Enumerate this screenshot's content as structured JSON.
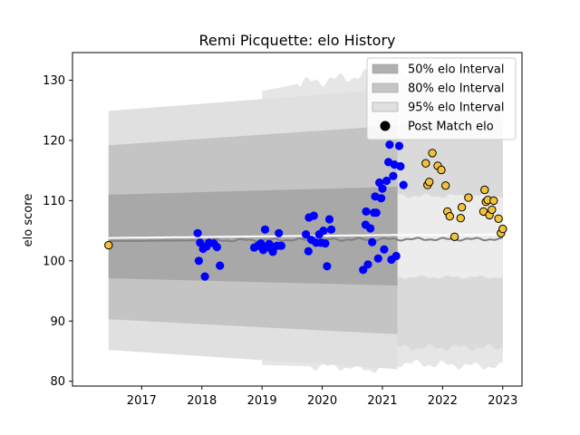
{
  "chart_data": {
    "type": "scatter",
    "title": "Remi Picquette: elo History",
    "xlabel": "",
    "ylabel": "elo score",
    "xlim": [
      2015.85,
      2023.32
    ],
    "ylim": [
      79.2,
      134.6
    ],
    "x_ticks": [
      2017,
      2018,
      2019,
      2020,
      2021,
      2022,
      2023
    ],
    "y_ticks": [
      80,
      90,
      100,
      110,
      120,
      130
    ],
    "legend_position": "top-right",
    "legend": [
      {
        "label": "50% elo Interval",
        "color": "#b0b0b0",
        "kind": "band"
      },
      {
        "label": "80% elo Interval",
        "color": "#c6c6c6",
        "kind": "band"
      },
      {
        "label": "95% elo Interval",
        "color": "#e0e0e0",
        "kind": "band"
      },
      {
        "label": "Post Match elo",
        "color": "#000000",
        "kind": "marker"
      }
    ],
    "colors": {
      "band50": "#a8a8a8",
      "band80": "#c4c4c4",
      "band95": "#e0e0e0",
      "band_outer": "#e6e6e6",
      "mean_line": "#ffffff",
      "median_line": "#808080",
      "past_points": "#0000ff",
      "future_points": "#f2c23a",
      "future_edge": "#000000"
    },
    "series": [
      {
        "values": [
          [
            2016.45,
            102.6
          ]
        ],
        "role": "first_point"
      },
      {
        "values": [
          [
            2017.93,
            104.6
          ],
          [
            2017.95,
            100.0
          ],
          [
            2017.97,
            103.0
          ],
          [
            2018.02,
            102.0
          ],
          [
            2018.05,
            97.4
          ],
          [
            2018.08,
            102.4
          ],
          [
            2018.12,
            103.0
          ],
          [
            2018.2,
            102.9
          ],
          [
            2018.25,
            102.3
          ],
          [
            2018.3,
            99.2
          ],
          [
            2018.87,
            102.2
          ],
          [
            2018.93,
            102.5
          ],
          [
            2018.98,
            102.9
          ],
          [
            2019.02,
            101.8
          ],
          [
            2019.05,
            105.2
          ],
          [
            2019.08,
            102.4
          ],
          [
            2019.12,
            102.8
          ],
          [
            2019.15,
            102.0
          ],
          [
            2019.18,
            101.5
          ],
          [
            2019.2,
            102.3
          ],
          [
            2019.25,
            102.5
          ],
          [
            2019.28,
            104.6
          ],
          [
            2019.32,
            102.5
          ],
          [
            2019.73,
            104.4
          ],
          [
            2019.77,
            101.6
          ],
          [
            2019.78,
            107.2
          ],
          [
            2019.82,
            103.5
          ],
          [
            2019.86,
            107.5
          ],
          [
            2019.9,
            103.0
          ],
          [
            2019.95,
            104.4
          ],
          [
            2019.98,
            103.0
          ],
          [
            2020.02,
            105.0
          ],
          [
            2020.05,
            102.9
          ],
          [
            2020.08,
            99.1
          ],
          [
            2020.12,
            106.9
          ],
          [
            2020.15,
            105.2
          ],
          [
            2020.68,
            98.5
          ],
          [
            2020.72,
            106.0
          ],
          [
            2020.73,
            108.2
          ],
          [
            2020.76,
            99.4
          ],
          [
            2020.8,
            105.4
          ],
          [
            2020.83,
            103.1
          ],
          [
            2020.86,
            108.0
          ],
          [
            2020.88,
            110.7
          ],
          [
            2020.9,
            108.0
          ],
          [
            2020.93,
            100.4
          ],
          [
            2020.95,
            113.0
          ],
          [
            2020.98,
            110.4
          ],
          [
            2021.0,
            112.0
          ],
          [
            2021.03,
            101.9
          ],
          [
            2021.07,
            113.3
          ],
          [
            2021.1,
            116.4
          ],
          [
            2021.12,
            119.3
          ],
          [
            2021.15,
            100.2
          ],
          [
            2021.18,
            114.1
          ],
          [
            2021.2,
            116.0
          ],
          [
            2021.23,
            100.8
          ],
          [
            2021.28,
            119.1
          ],
          [
            2021.3,
            115.7
          ],
          [
            2021.35,
            112.6
          ]
        ],
        "role": "past"
      },
      {
        "values": [
          [
            2021.72,
            116.2
          ],
          [
            2021.75,
            112.6
          ],
          [
            2021.78,
            113.1
          ],
          [
            2021.83,
            117.9
          ],
          [
            2021.92,
            115.8
          ],
          [
            2021.98,
            115.1
          ],
          [
            2022.05,
            112.5
          ],
          [
            2022.08,
            108.2
          ],
          [
            2022.12,
            107.4
          ],
          [
            2022.2,
            104.0
          ],
          [
            2022.3,
            107.1
          ],
          [
            2022.32,
            108.9
          ],
          [
            2022.43,
            110.5
          ],
          [
            2022.68,
            108.2
          ],
          [
            2022.7,
            111.8
          ],
          [
            2022.72,
            109.8
          ],
          [
            2022.75,
            110.1
          ],
          [
            2022.78,
            107.6
          ],
          [
            2022.82,
            108.5
          ],
          [
            2022.85,
            110.0
          ],
          [
            2022.93,
            107.0
          ],
          [
            2022.97,
            104.6
          ],
          [
            2023.0,
            105.3
          ]
        ],
        "role": "future"
      }
    ],
    "bands": {
      "x_start": 2016.45,
      "x_obs_end": 2021.25,
      "x_end": 2023.0,
      "mean": [
        [
          2016.45,
          103.8
        ],
        [
          2021.25,
          104.3
        ],
        [
          2022.2,
          104.3
        ],
        [
          2023.0,
          104.4
        ]
      ],
      "median": [
        [
          2016.45,
          103.3
        ],
        [
          2021.25,
          103.6
        ],
        [
          2023.0,
          103.6
        ]
      ],
      "band50": {
        "upper": [
          [
            2016.45,
            111.0
          ],
          [
            2021.25,
            112.3
          ]
        ],
        "lower": [
          [
            2016.45,
            97.1
          ],
          [
            2021.25,
            95.9
          ]
        ]
      },
      "band80": {
        "upper": [
          [
            2016.45,
            119.2
          ],
          [
            2021.25,
            122.5
          ]
        ],
        "lower": [
          [
            2016.45,
            90.3
          ],
          [
            2021.25,
            87.8
          ]
        ]
      },
      "band95": {
        "upper": [
          [
            2016.45,
            124.9
          ],
          [
            2021.25,
            128.6
          ]
        ],
        "lower": [
          [
            2016.45,
            85.2
          ],
          [
            2021.25,
            82.0
          ]
        ]
      },
      "future_upper_outer": [
        [
          2019.0,
          128.2
        ],
        [
          2019.7,
          129.6
        ],
        [
          2020.3,
          130.3
        ],
        [
          2020.8,
          131.0
        ],
        [
          2021.25,
          131.3
        ],
        [
          2023.0,
          131.6
        ]
      ],
      "future_lower_outer": [
        [
          2019.0,
          82.7
        ],
        [
          2019.8,
          82.5
        ],
        [
          2020.3,
          82.4
        ],
        [
          2020.85,
          81.9
        ],
        [
          2021.25,
          83.0
        ],
        [
          2023.0,
          82.4
        ]
      ]
    }
  }
}
